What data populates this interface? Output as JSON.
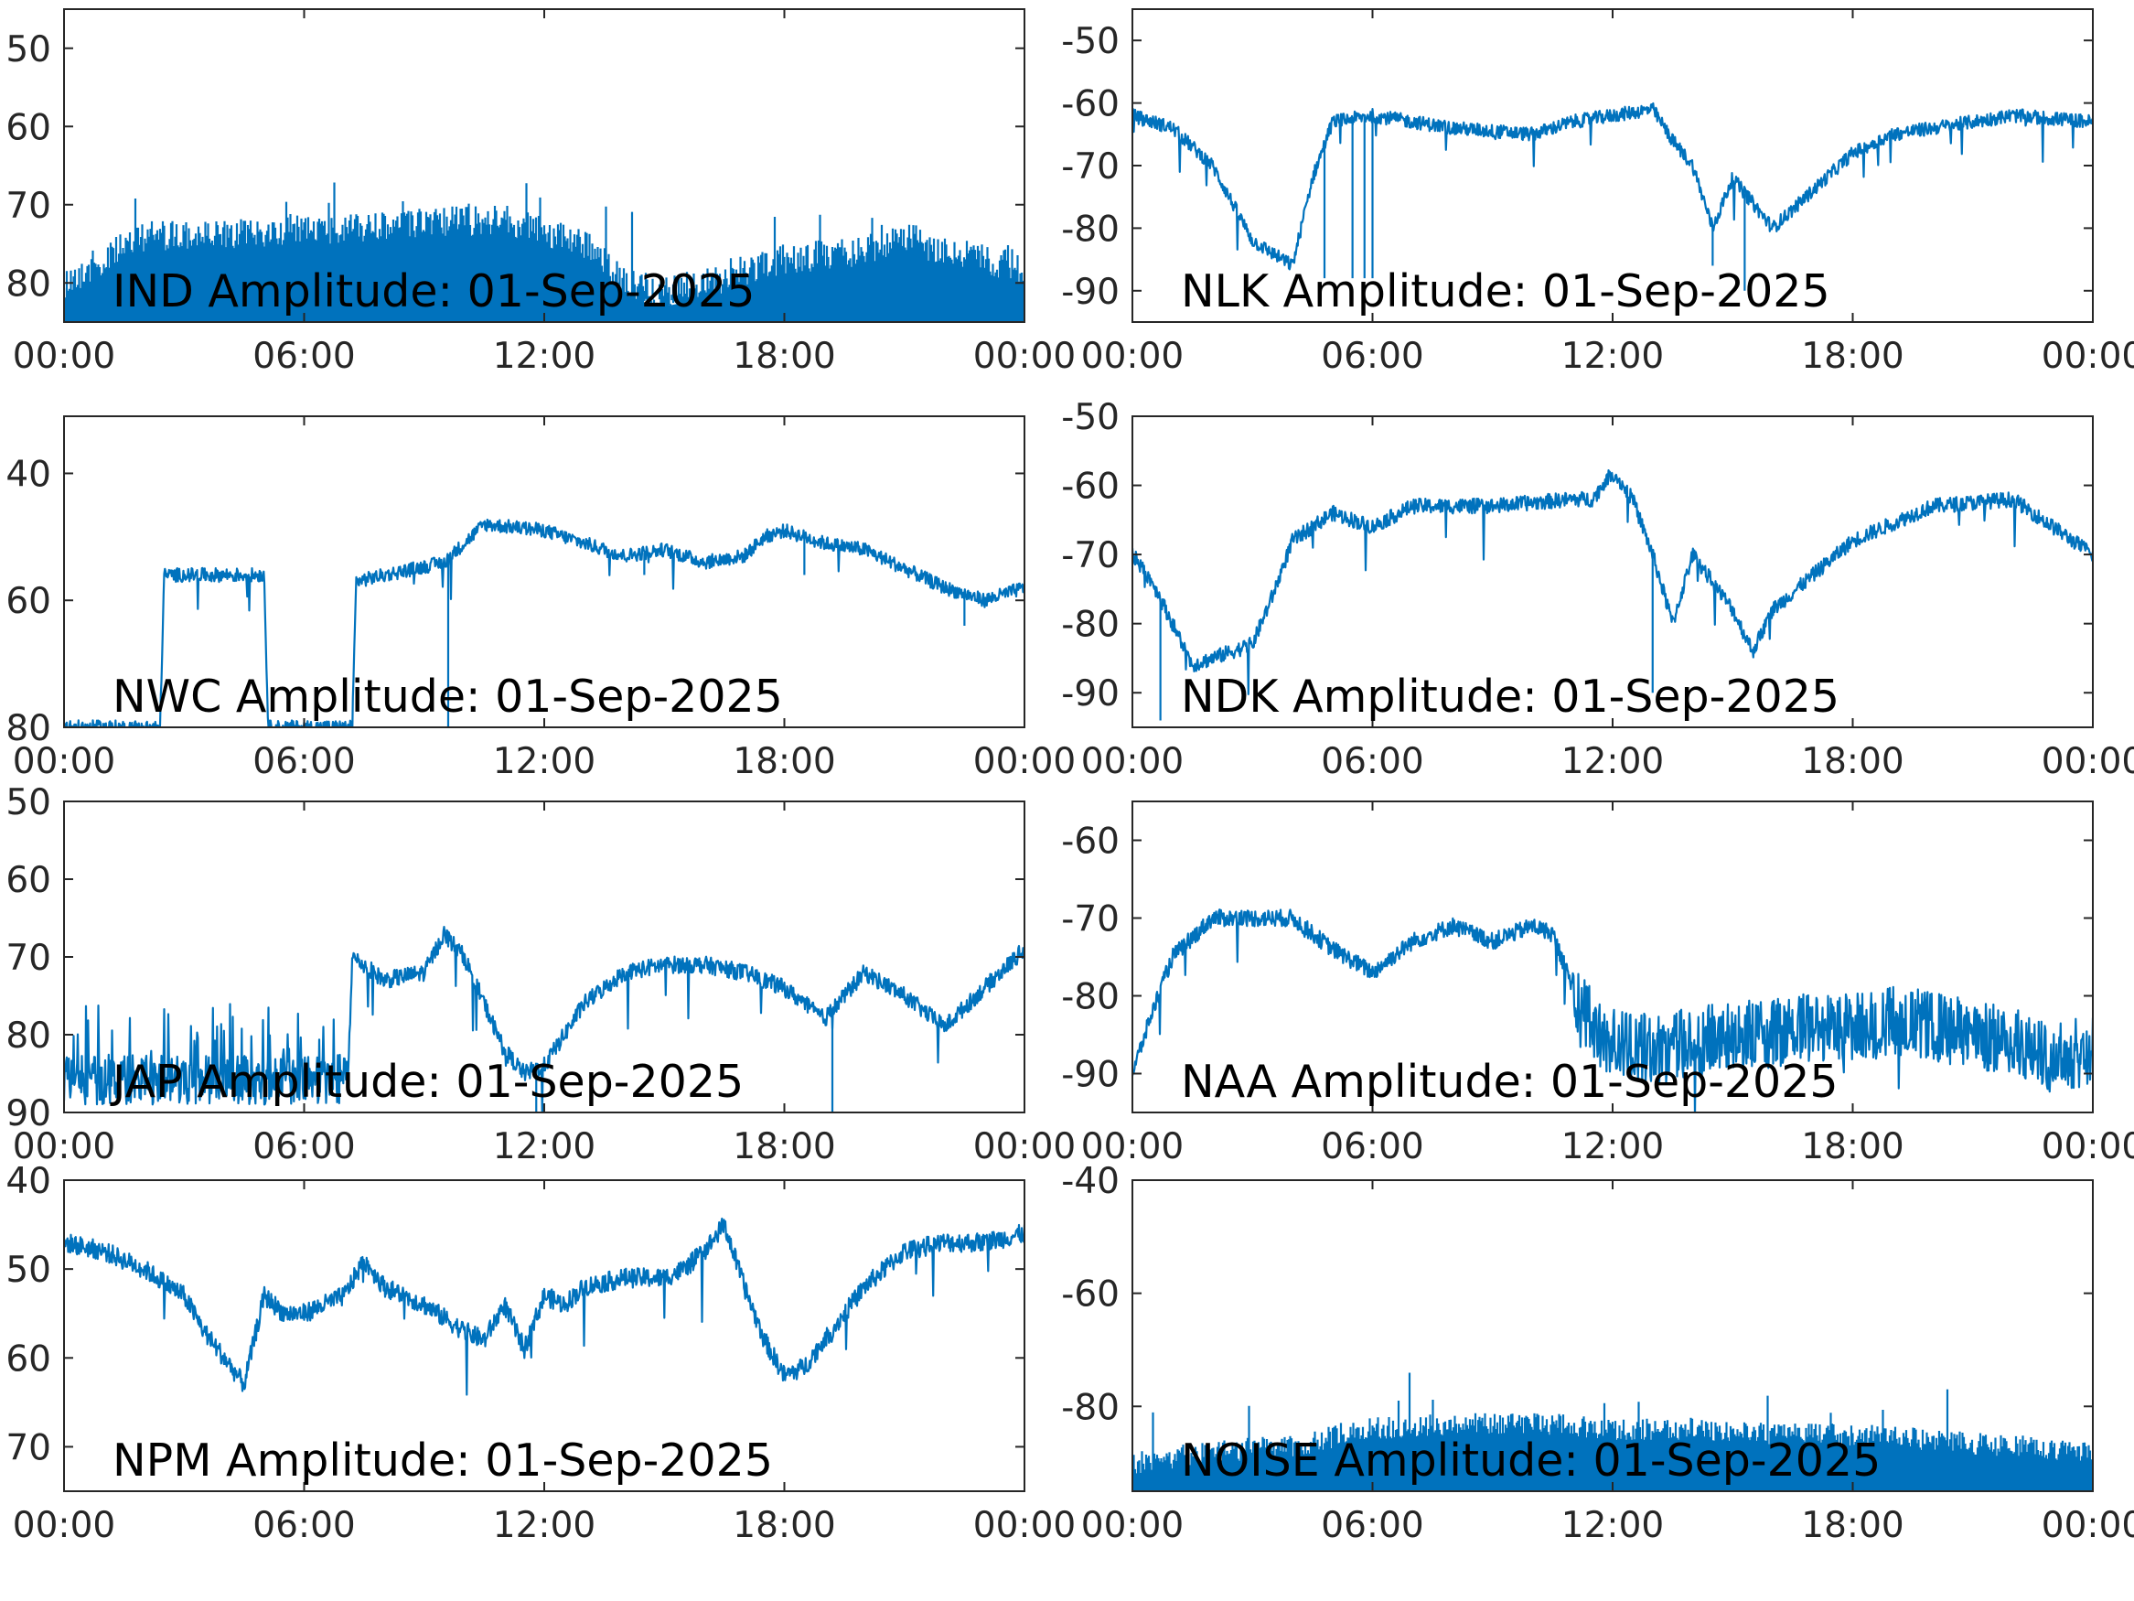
{
  "figure": {
    "line_color": "#0072BD",
    "frame_color": "#262626",
    "background": "#ffffff"
  },
  "chart_data": [
    {
      "type": "line",
      "title": "IND Amplitude: 01-Sep-2025",
      "x_ticks": [
        "00:00",
        "06:00",
        "12:00",
        "18:00",
        "00:00"
      ],
      "xlim_hours": [
        0,
        24
      ],
      "y_tick_labels": [
        "50",
        "60",
        "70",
        "80"
      ],
      "y_tick_values": [
        -50,
        -60,
        -70,
        -80
      ],
      "ylim": [
        -85,
        -45
      ],
      "grid": false,
      "series": [
        {
          "kind": "noisy_band",
          "x_hours": [
            0,
            1,
            2,
            4,
            6,
            8,
            10,
            11,
            13,
            14,
            15,
            16,
            18,
            20,
            21,
            22,
            24
          ],
          "upper": [
            -78,
            -75,
            -72,
            -72,
            -71,
            -71,
            -70,
            -70,
            -73,
            -78,
            -79,
            -78,
            -75,
            -74,
            -72,
            -74,
            -76
          ],
          "lower": [
            -85,
            -85,
            -85,
            -85,
            -85,
            -85,
            -85,
            -85,
            -85,
            -84,
            -84,
            -85,
            -85,
            -85,
            -85,
            -85,
            -85
          ],
          "peak_spike_db": -67
        }
      ]
    },
    {
      "type": "line",
      "title": "NLK Amplitude: 01-Sep-2025",
      "x_ticks": [
        "00:00",
        "06:00",
        "12:00",
        "18:00",
        "00:00"
      ],
      "xlim_hours": [
        0,
        24
      ],
      "y_tick_labels": [
        "-50",
        "-60",
        "-70",
        "-80",
        "-90"
      ],
      "y_tick_values": [
        -50,
        -60,
        -70,
        -80,
        -90
      ],
      "ylim": [
        -95,
        -45
      ],
      "grid": false,
      "series": [
        {
          "kind": "line",
          "x_hours": [
            0,
            1,
            2,
            3,
            3.5,
            4,
            4.5,
            5,
            6,
            8,
            10,
            11,
            12,
            13,
            13.5,
            14,
            14.5,
            15,
            15.5,
            16,
            17,
            18,
            19,
            20,
            22,
            24
          ],
          "y": [
            -62,
            -64,
            -70,
            -82,
            -84,
            -86,
            -72,
            -63,
            -62,
            -64,
            -65,
            -63,
            -62,
            -61,
            -66,
            -70,
            -80,
            -72,
            -76,
            -80,
            -74,
            -68,
            -65,
            -64,
            -62,
            -63
          ],
          "dropouts": [
            [
              4.8,
              -88
            ],
            [
              5.5,
              -88
            ],
            [
              5.8,
              -88
            ],
            [
              6.0,
              -88
            ],
            [
              14.5,
              -86
            ],
            [
              15.3,
              -90
            ]
          ]
        }
      ]
    },
    {
      "type": "line",
      "title": "NWC Amplitude: 01-Sep-2025",
      "x_ticks": [
        "00:00",
        "06:00",
        "12:00",
        "18:00",
        "00:00"
      ],
      "xlim_hours": [
        0,
        24
      ],
      "y_tick_labels": [
        "40",
        "60",
        "80"
      ],
      "y_tick_values": [
        -40,
        -60,
        -80
      ],
      "ylim": [
        -80,
        -31
      ],
      "grid": false,
      "series": [
        {
          "kind": "line",
          "x_hours": [
            0,
            2.4,
            2.5,
            5.0,
            5.1,
            7.2,
            7.3,
            9.5,
            10.5,
            12,
            13,
            14,
            15,
            16,
            17,
            17.5,
            18,
            19,
            20,
            21,
            22,
            23,
            24
          ],
          "y": [
            -80,
            -80,
            -56,
            -56,
            -80,
            -80,
            -57,
            -54,
            -48,
            -49,
            -51,
            -53,
            -52,
            -54,
            -53,
            -50,
            -49,
            -51,
            -52,
            -55,
            -58,
            -60,
            -58
          ],
          "dropouts": [
            [
              0.1,
              -80
            ],
            [
              9.6,
              -80
            ],
            [
              14.5,
              -56
            ],
            [
              18.5,
              -56
            ],
            [
              22.5,
              -64
            ]
          ]
        }
      ]
    },
    {
      "type": "line",
      "title": "NDK Amplitude: 01-Sep-2025",
      "x_ticks": [
        "00:00",
        "06:00",
        "12:00",
        "18:00",
        "00:00"
      ],
      "xlim_hours": [
        0,
        24
      ],
      "y_tick_labels": [
        "-50",
        "-60",
        "-70",
        "-80",
        "-90"
      ],
      "y_tick_values": [
        -50,
        -60,
        -70,
        -80,
        -90
      ],
      "ylim": [
        -95,
        -50
      ],
      "grid": false,
      "series": [
        {
          "kind": "line",
          "x_hours": [
            0,
            0.5,
            1,
            1.5,
            2,
            2.5,
            3,
            3.5,
            4,
            5,
            6,
            7,
            9,
            11,
            11.5,
            12,
            12.5,
            13,
            13.5,
            14,
            14.5,
            15,
            15.5,
            16,
            17,
            18,
            20,
            22,
            24
          ],
          "y": [
            -70,
            -74,
            -80,
            -86,
            -85,
            -84,
            -83,
            -76,
            -68,
            -64,
            -66,
            -63,
            -63,
            -62,
            -62,
            -58,
            -62,
            -70,
            -80,
            -70,
            -74,
            -78,
            -84,
            -78,
            -73,
            -68,
            -63,
            -62,
            -70
          ],
          "dropouts": [
            [
              0.7,
              -94
            ],
            [
              13.0,
              -90
            ]
          ]
        }
      ]
    },
    {
      "type": "line",
      "title": "JAP Amplitude: 01-Sep-2025",
      "x_ticks": [
        "00:00",
        "06:00",
        "12:00",
        "18:00",
        "00:00"
      ],
      "xlim_hours": [
        0,
        24
      ],
      "y_tick_labels": [
        "50",
        "60",
        "70",
        "80",
        "90"
      ],
      "y_tick_values": [
        -50,
        -60,
        -70,
        -80,
        -90
      ],
      "ylim": [
        -90,
        -50
      ],
      "grid": false,
      "series": [
        {
          "kind": "line",
          "x_hours": [
            0,
            3,
            7.1,
            7.2,
            8,
            9,
            9.5,
            10,
            10.5,
            11,
            11.5,
            12,
            12.5,
            13,
            14,
            15,
            16,
            17,
            18,
            19,
            20,
            21,
            22,
            23,
            24
          ],
          "y": [
            -87,
            -86,
            -85,
            -70,
            -73,
            -72,
            -67,
            -70,
            -76,
            -82,
            -85,
            -84,
            -80,
            -76,
            -72,
            -71,
            -71,
            -72,
            -74,
            -78,
            -72,
            -75,
            -79,
            -74,
            -69
          ],
          "noisy_until_hour": 7.1,
          "noise_upper_db": -76,
          "dropouts": [
            [
              11.8,
              -90
            ],
            [
              19.2,
              -90
            ]
          ]
        }
      ]
    },
    {
      "type": "line",
      "title": "NAA Amplitude: 01-Sep-2025",
      "x_ticks": [
        "00:00",
        "06:00",
        "12:00",
        "18:00",
        "00:00"
      ],
      "xlim_hours": [
        0,
        24
      ],
      "y_tick_labels": [
        "-60",
        "-70",
        "-80",
        "-90"
      ],
      "y_tick_values": [
        -60,
        -70,
        -80,
        -90
      ],
      "ylim": [
        -95,
        -55
      ],
      "grid": false,
      "series": [
        {
          "kind": "line",
          "x_hours": [
            0,
            0.5,
            1,
            2,
            3,
            4,
            5,
            6,
            7,
            8,
            9,
            10,
            10.5,
            11,
            11.5,
            12,
            13,
            14,
            15,
            16,
            17,
            18,
            19,
            20,
            21,
            22,
            23,
            24
          ],
          "y": [
            -90,
            -82,
            -75,
            -70,
            -70,
            -70,
            -74,
            -77,
            -73,
            -71,
            -73,
            -71,
            -72,
            -79,
            -84,
            -86,
            -87,
            -86,
            -85,
            -85,
            -84,
            -84,
            -83,
            -84,
            -85,
            -86,
            -88,
            -87
          ],
          "noisy_from_hour": 11
        }
      ]
    },
    {
      "type": "line",
      "title": "NPM Amplitude: 01-Sep-2025",
      "x_ticks": [
        "00:00",
        "06:00",
        "12:00",
        "18:00",
        "00:00"
      ],
      "xlim_hours": [
        0,
        24
      ],
      "y_tick_labels": [
        "40",
        "50",
        "60",
        "70"
      ],
      "y_tick_values": [
        -40,
        -50,
        -60,
        -70
      ],
      "ylim": [
        -75,
        -40
      ],
      "grid": false,
      "series": [
        {
          "kind": "line",
          "x_hours": [
            0,
            1,
            2,
            3,
            3.5,
            4,
            4.5,
            5,
            5.5,
            6,
            7,
            7.5,
            8,
            9,
            10,
            10.5,
            11,
            11.5,
            12,
            12.5,
            13,
            14,
            15,
            15.5,
            16,
            16.5,
            17,
            17.5,
            18,
            18.5,
            19,
            20,
            21,
            22,
            23,
            24
          ],
          "y": [
            -47,
            -48,
            -50,
            -53,
            -57,
            -60,
            -63,
            -53,
            -55,
            -55,
            -53,
            -49,
            -52,
            -54,
            -57,
            -58,
            -54,
            -59,
            -53,
            -54,
            -52,
            -51,
            -51,
            -50,
            -48,
            -45,
            -52,
            -58,
            -62,
            -61,
            -58,
            -52,
            -48,
            -47,
            -47,
            -46
          ]
        }
      ]
    },
    {
      "type": "line",
      "title": "NOISE Amplitude: 01-Sep-2025",
      "x_ticks": [
        "00:00",
        "06:00",
        "12:00",
        "18:00",
        "00:00"
      ],
      "xlim_hours": [
        0,
        24
      ],
      "y_tick_labels": [
        "-40",
        "-60",
        "-80"
      ],
      "y_tick_values": [
        -40,
        -60,
        -80
      ],
      "ylim": [
        -95,
        -40
      ],
      "grid": false,
      "series": [
        {
          "kind": "noisy_band",
          "x_hours": [
            0,
            2,
            4,
            6,
            8,
            10,
            12,
            14,
            16,
            18,
            20,
            22,
            24
          ],
          "upper": [
            -88,
            -86,
            -85,
            -82,
            -81,
            -81,
            -82,
            -82,
            -83,
            -83,
            -84,
            -85,
            -86
          ],
          "lower": [
            -95,
            -95,
            -95,
            -95,
            -95,
            -95,
            -95,
            -95,
            -95,
            -95,
            -95,
            -95,
            -95
          ],
          "peak_spike_db": -74
        }
      ]
    }
  ]
}
